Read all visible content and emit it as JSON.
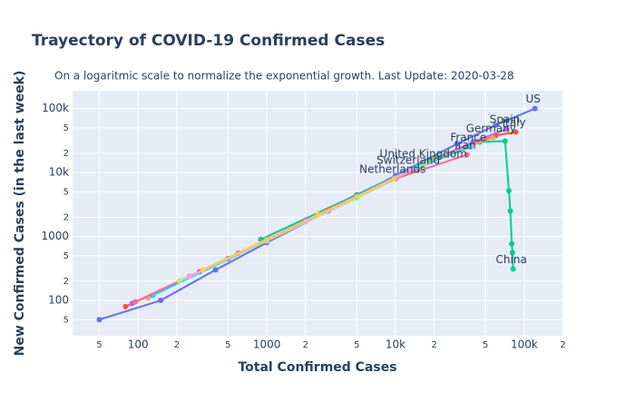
{
  "chart_data": {
    "type": "line",
    "title": "Trayectory of COVID-19 Confirmed Cases",
    "subtitle": "On a logaritmic scale to normalize the exponential growth. Last Update: 2020-03-28",
    "x_label": "Total Confirmed Cases",
    "y_label": "New Confirmed Cases (in the last week)",
    "log_x": true,
    "log_y": true,
    "grid": true,
    "xlim": [
      31,
      198000
    ],
    "ylim": [
      28,
      190000
    ],
    "xticks": [
      {
        "value": 50,
        "label": "5"
      },
      100,
      {
        "value": 200,
        "label": "2"
      },
      {
        "value": 500,
        "label": "5"
      },
      1000,
      {
        "value": 2000,
        "label": "2"
      },
      {
        "value": 5000,
        "label": "5"
      },
      {
        "value": 10000,
        "label": "10k"
      },
      {
        "value": 20000,
        "label": "2"
      },
      {
        "value": 50000,
        "label": "5"
      },
      {
        "value": 100000,
        "label": "100k"
      },
      {
        "value": 200000,
        "label": "2"
      }
    ],
    "yticks": [
      {
        "value": 50,
        "label": "5"
      },
      100,
      {
        "value": 200,
        "label": "2"
      },
      {
        "value": 500,
        "label": "5"
      },
      1000,
      {
        "value": 2000,
        "label": "2"
      },
      {
        "value": 5000,
        "label": "5"
      },
      {
        "value": 10000,
        "label": "10k"
      },
      {
        "value": 20000,
        "label": "2"
      },
      {
        "value": 50000,
        "label": "5"
      },
      {
        "value": 100000,
        "label": "100k"
      }
    ],
    "series": [
      {
        "name": "US",
        "color": "#636efa",
        "x": [
          50,
          150,
          400,
          1000,
          3000,
          10000,
          30000,
          60000,
          121000
        ],
        "values": [
          50,
          100,
          300,
          800,
          2500,
          9000,
          28000,
          55000,
          100000
        ]
      },
      {
        "name": "China",
        "color": "#00cc96",
        "x": [
          900,
          5000,
          20000,
          45000,
          71000,
          76000,
          78000,
          80000,
          81000,
          82000
        ],
        "values": [
          900,
          4500,
          17000,
          30000,
          31000,
          5200,
          2500,
          770,
          560,
          310
        ]
      },
      {
        "name": "Italy",
        "color": "#ef553b",
        "x": [
          80,
          300,
          1000,
          3000,
          10000,
          30000,
          60000,
          86000
        ],
        "values": [
          80,
          280,
          900,
          2600,
          8000,
          22000,
          38000,
          43000
        ]
      },
      {
        "name": "Spain",
        "color": "#ab63fa",
        "x": [
          90,
          500,
          2000,
          10000,
          40000,
          73000
        ],
        "values": [
          90,
          450,
          1800,
          8500,
          30000,
          48000
        ]
      },
      {
        "name": "Germany",
        "color": "#ffa15a",
        "x": [
          120,
          1000,
          5000,
          20000,
          57000
        ],
        "values": [
          110,
          900,
          4200,
          16000,
          35000
        ]
      },
      {
        "name": "France",
        "color": "#19d3f3",
        "x": [
          130,
          1000,
          5000,
          15000,
          38000
        ],
        "values": [
          120,
          850,
          4000,
          12000,
          25000
        ]
      },
      {
        "name": "Iran",
        "color": "#ff6692",
        "x": [
          95,
          600,
          3000,
          10000,
          36000
        ],
        "values": [
          95,
          550,
          2500,
          8000,
          19000
        ]
      },
      {
        "name": "United Kingdom",
        "color": "#b6e880",
        "x": [
          210,
          1000,
          5000,
          17000
        ],
        "values": [
          200,
          850,
          4000,
          14000
        ]
      },
      {
        "name": "Switzerland",
        "color": "#ff97ff",
        "x": [
          250,
          2000,
          13000
        ],
        "values": [
          240,
          1700,
          11000
        ]
      },
      {
        "name": "Netherlands",
        "color": "#fecb52",
        "x": [
          320,
          2500,
          9800
        ],
        "values": [
          300,
          2200,
          8000
        ]
      }
    ]
  }
}
